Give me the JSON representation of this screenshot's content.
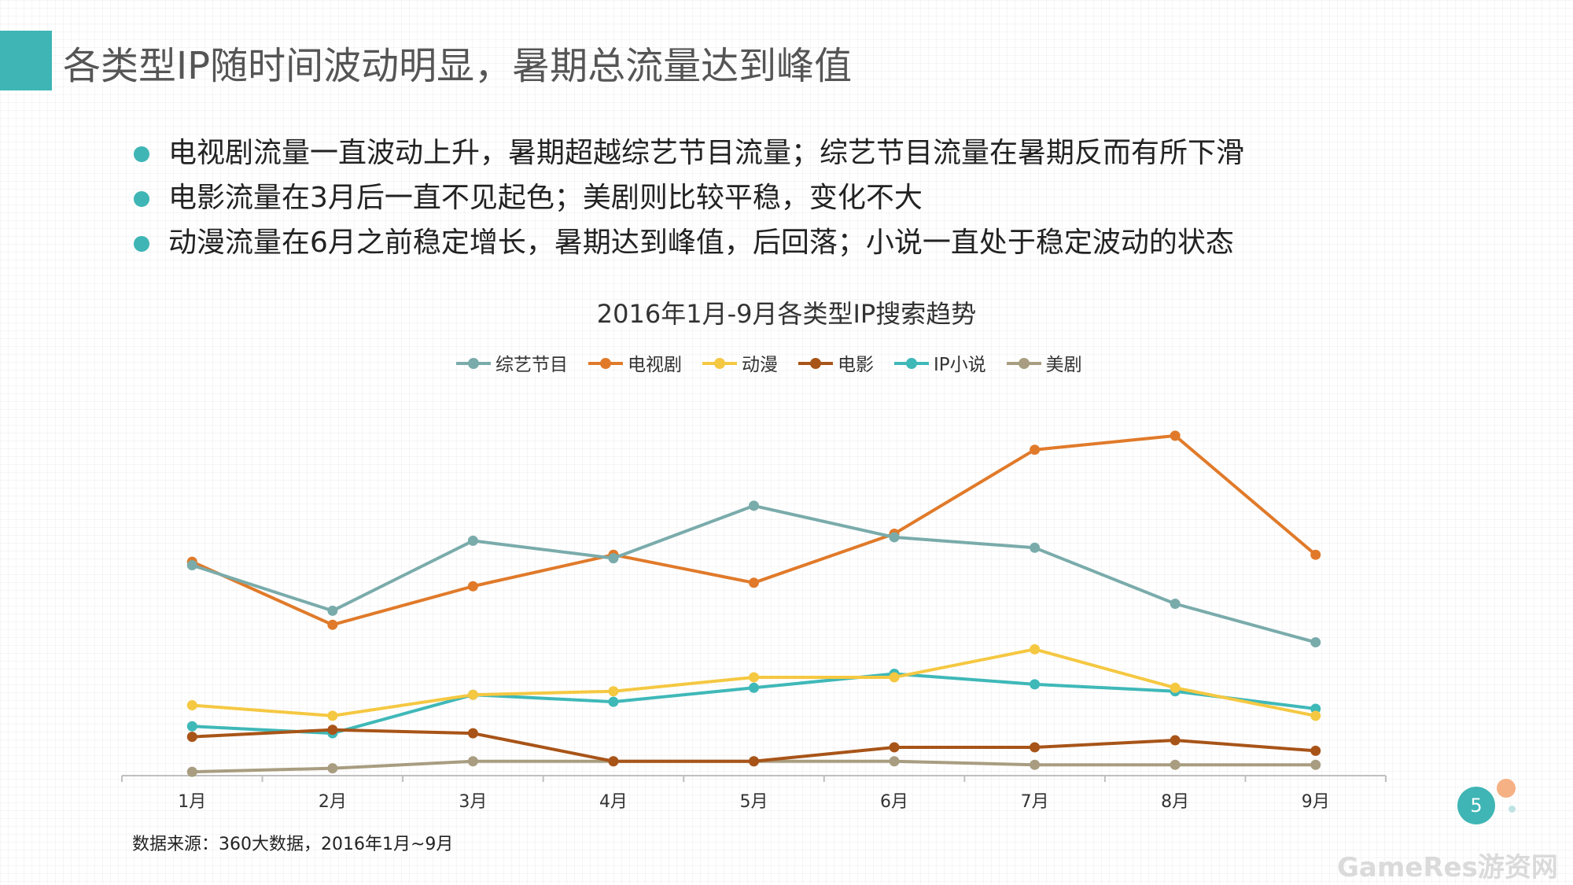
{
  "header": {
    "title": "各类型IP随时间波动明显，暑期总流量达到峰值"
  },
  "bullets": [
    {
      "text": "电视剧流量一直波动上升，暑期超越综艺节目流量；综艺节目流量在暑期反而有所下滑"
    },
    {
      "text": "电影流量在3月后一直不见起色；美剧则比较平稳，变化不大"
    },
    {
      "text": "动漫流量在6月之前稳定增长，暑期达到峰值，后回落；小说一直处于稳定波动的状态"
    }
  ],
  "colors": {
    "accent": "#3fb5b5"
  },
  "chart_data": {
    "type": "line",
    "title": "2016年1月-9月各类型IP搜索趋势",
    "xlabel": "",
    "ylabel": "",
    "categories": [
      "1月",
      "2月",
      "3月",
      "4月",
      "5月",
      "6月",
      "7月",
      "8月",
      "9月"
    ],
    "ylim": [
      0,
      100
    ],
    "grid": false,
    "legend_position": "top-center",
    "series": [
      {
        "name": "综艺节目",
        "color": "#7aabab",
        "values": [
          61,
          48,
          68,
          63,
          78,
          69,
          66,
          50,
          39
        ]
      },
      {
        "name": "电视剧",
        "color": "#e07a2a",
        "values": [
          62,
          44,
          55,
          64,
          56,
          70,
          94,
          98,
          64
        ]
      },
      {
        "name": "动漫",
        "color": "#f5c842",
        "values": [
          21,
          18,
          24,
          25,
          29,
          29,
          37,
          26,
          18
        ]
      },
      {
        "name": "电影",
        "color": "#a85418",
        "values": [
          12,
          14,
          13,
          5,
          5,
          9,
          9,
          11,
          8
        ]
      },
      {
        "name": "IP小说",
        "color": "#3fb8b8",
        "values": [
          15,
          13,
          24,
          22,
          26,
          30,
          27,
          25,
          20
        ]
      },
      {
        "name": "美剧",
        "color": "#a89d80",
        "values": [
          2,
          3,
          5,
          5,
          5,
          5,
          4,
          4,
          4
        ]
      }
    ]
  },
  "footer": {
    "source": "数据来源：360大数据，2016年1月~9月",
    "page_number": "5",
    "watermark": "GameRes游资网"
  }
}
